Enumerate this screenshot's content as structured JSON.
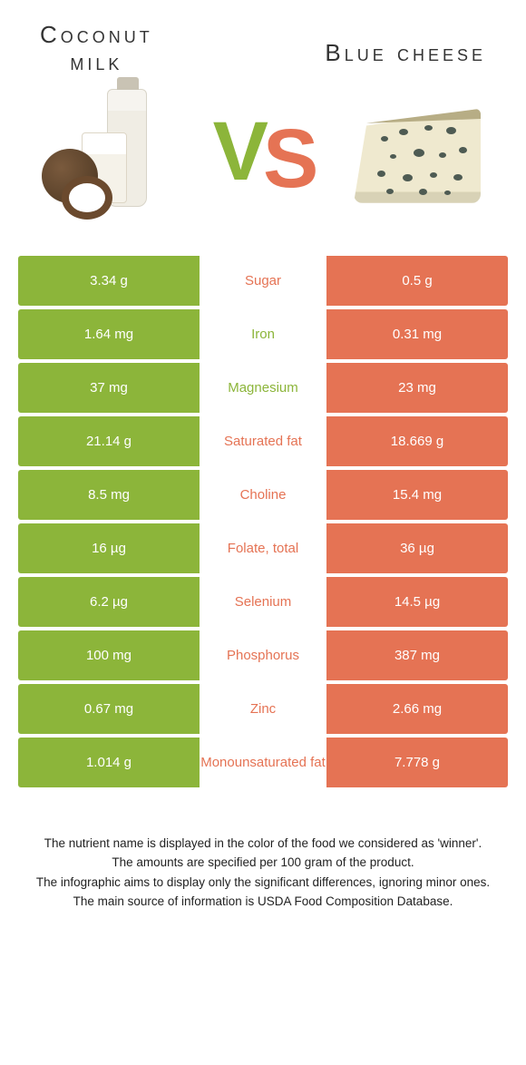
{
  "header": {
    "left_title": "Coconut\nmilk",
    "right_title": "Blue cheese",
    "vs_v": "V",
    "vs_s": "S",
    "vs_color_left": "#8cb53a",
    "vs_color_right": "#e57354"
  },
  "palette": {
    "left_bar": "#8cb53a",
    "right_bar": "#e57354",
    "mid_bg": "#ffffff"
  },
  "rows": [
    {
      "nutrient": "Sugar",
      "left": "3.34 g",
      "right": "0.5 g",
      "winner": "right"
    },
    {
      "nutrient": "Iron",
      "left": "1.64 mg",
      "right": "0.31 mg",
      "winner": "left"
    },
    {
      "nutrient": "Magnesium",
      "left": "37 mg",
      "right": "23 mg",
      "winner": "left"
    },
    {
      "nutrient": "Saturated fat",
      "left": "21.14 g",
      "right": "18.669 g",
      "winner": "right"
    },
    {
      "nutrient": "Choline",
      "left": "8.5 mg",
      "right": "15.4 mg",
      "winner": "right"
    },
    {
      "nutrient": "Folate, total",
      "left": "16 µg",
      "right": "36 µg",
      "winner": "right"
    },
    {
      "nutrient": "Selenium",
      "left": "6.2 µg",
      "right": "14.5 µg",
      "winner": "right"
    },
    {
      "nutrient": "Phosphorus",
      "left": "100 mg",
      "right": "387 mg",
      "winner": "right"
    },
    {
      "nutrient": "Zinc",
      "left": "0.67 mg",
      "right": "2.66 mg",
      "winner": "right"
    },
    {
      "nutrient": "Monounsaturated fat",
      "left": "1.014 g",
      "right": "7.778 g",
      "winner": "right"
    }
  ],
  "footer": {
    "l1": "The nutrient name is displayed in the color of the food we considered as 'winner'.",
    "l2": "The amounts are specified per 100 gram of the product.",
    "l3": "The infographic aims to display only the significant differences, ignoring minor ones.",
    "l4": "The main source of information is USDA Food Composition Database."
  },
  "cheese_veins": [
    {
      "l": 40,
      "t": 58,
      "w": 8,
      "h": 6
    },
    {
      "l": 60,
      "t": 50,
      "w": 10,
      "h": 7
    },
    {
      "l": 88,
      "t": 46,
      "w": 9,
      "h": 6
    },
    {
      "l": 112,
      "t": 48,
      "w": 11,
      "h": 8
    },
    {
      "l": 50,
      "t": 78,
      "w": 7,
      "h": 5
    },
    {
      "l": 76,
      "t": 72,
      "w": 12,
      "h": 9
    },
    {
      "l": 104,
      "t": 76,
      "w": 8,
      "h": 6
    },
    {
      "l": 126,
      "t": 70,
      "w": 9,
      "h": 7
    },
    {
      "l": 36,
      "t": 96,
      "w": 9,
      "h": 7
    },
    {
      "l": 64,
      "t": 100,
      "w": 11,
      "h": 8
    },
    {
      "l": 94,
      "t": 98,
      "w": 8,
      "h": 6
    },
    {
      "l": 120,
      "t": 100,
      "w": 10,
      "h": 7
    },
    {
      "l": 46,
      "t": 116,
      "w": 8,
      "h": 6
    },
    {
      "l": 82,
      "t": 116,
      "w": 9,
      "h": 7
    },
    {
      "l": 110,
      "t": 118,
      "w": 7,
      "h": 5
    }
  ]
}
